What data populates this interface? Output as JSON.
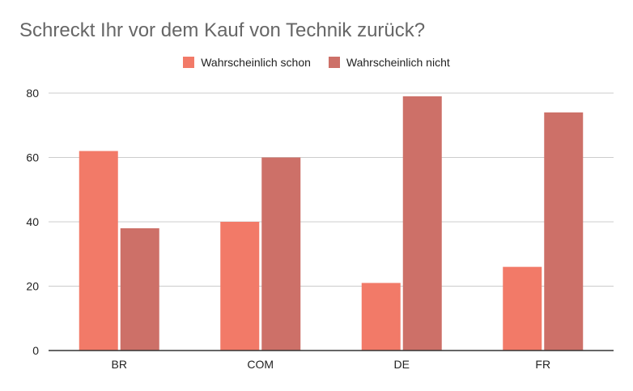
{
  "chart_data": {
    "type": "bar",
    "title": "Schreckt Ihr vor dem Kauf von Technik zurück?",
    "categories": [
      "BR",
      "COM",
      "DE",
      "FR"
    ],
    "series": [
      {
        "name": "Wahrscheinlich schon",
        "values": [
          62,
          40,
          21,
          26
        ],
        "color": "#f27a68"
      },
      {
        "name": "Wahrscheinlich nicht",
        "values": [
          38,
          60,
          79,
          74
        ],
        "color": "#cd7068"
      }
    ],
    "xlabel": "",
    "ylabel": "",
    "ylim": [
      0,
      80
    ],
    "yticks": [
      0,
      20,
      40,
      60,
      80
    ],
    "grid": true,
    "legend_position": "top-center"
  }
}
